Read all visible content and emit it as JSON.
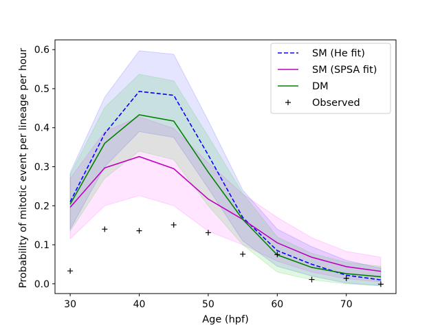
{
  "chart_data": {
    "type": "line",
    "xlabel": "Age (hpf)",
    "ylabel": "Probability of mitotic event per lineage per hour",
    "xlim": [
      27.8,
      77.2
    ],
    "ylim": [
      -0.025,
      0.625
    ],
    "xticks": [
      30,
      40,
      50,
      60,
      70
    ],
    "yticks": [
      0.0,
      0.1,
      0.2,
      0.3,
      0.4,
      0.5,
      0.6
    ],
    "legend_position": "top-right",
    "x": [
      30,
      35,
      40,
      45,
      50,
      55,
      60,
      65,
      70,
      75
    ],
    "series": [
      {
        "name": "SM (He fit)",
        "style": "dashed",
        "color": "#0000ff",
        "values": [
          0.21,
          0.385,
          0.493,
          0.483,
          0.33,
          0.17,
          0.085,
          0.05,
          0.022,
          0.01
        ],
        "upper": [
          0.285,
          0.478,
          0.597,
          0.588,
          0.418,
          0.24,
          0.14,
          0.095,
          0.06,
          0.04
        ],
        "lower": [
          0.14,
          0.3,
          0.39,
          0.375,
          0.245,
          0.11,
          0.045,
          0.02,
          0.002,
          -0.005
        ],
        "band_color": "#0000ff",
        "band_opacity": 0.1
      },
      {
        "name": "SM (SPSA fit)",
        "style": "solid",
        "color": "#c000c0",
        "values": [
          0.196,
          0.297,
          0.326,
          0.295,
          0.217,
          0.165,
          0.105,
          0.068,
          0.044,
          0.032
        ],
        "upper": [
          0.27,
          0.39,
          0.428,
          0.398,
          0.31,
          0.23,
          0.17,
          0.118,
          0.083,
          0.068
        ],
        "lower": [
          0.115,
          0.2,
          0.226,
          0.2,
          0.135,
          0.1,
          0.058,
          0.03,
          0.013,
          0.005
        ],
        "band_color": "#ff00ff",
        "band_opacity": 0.1
      },
      {
        "name": "DM",
        "style": "solid",
        "color": "#008000",
        "values": [
          0.204,
          0.36,
          0.433,
          0.417,
          0.286,
          0.165,
          0.074,
          0.042,
          0.026,
          0.018
        ],
        "upper": [
          0.28,
          0.452,
          0.537,
          0.52,
          0.378,
          0.232,
          0.12,
          0.078,
          0.055,
          0.045
        ],
        "lower": [
          0.135,
          0.27,
          0.34,
          0.318,
          0.2,
          0.1,
          0.03,
          0.01,
          0.0,
          -0.005
        ],
        "band_color": "#00c000",
        "band_opacity": 0.12
      }
    ],
    "observed": {
      "name": "Observed",
      "marker": "+",
      "color": "#000000",
      "x": [
        30,
        35,
        40,
        45,
        50,
        55,
        60,
        65,
        70,
        75
      ],
      "values": [
        0.033,
        0.14,
        0.136,
        0.151,
        0.131,
        0.076,
        0.075,
        0.011,
        0.014,
        -0.001
      ]
    }
  }
}
